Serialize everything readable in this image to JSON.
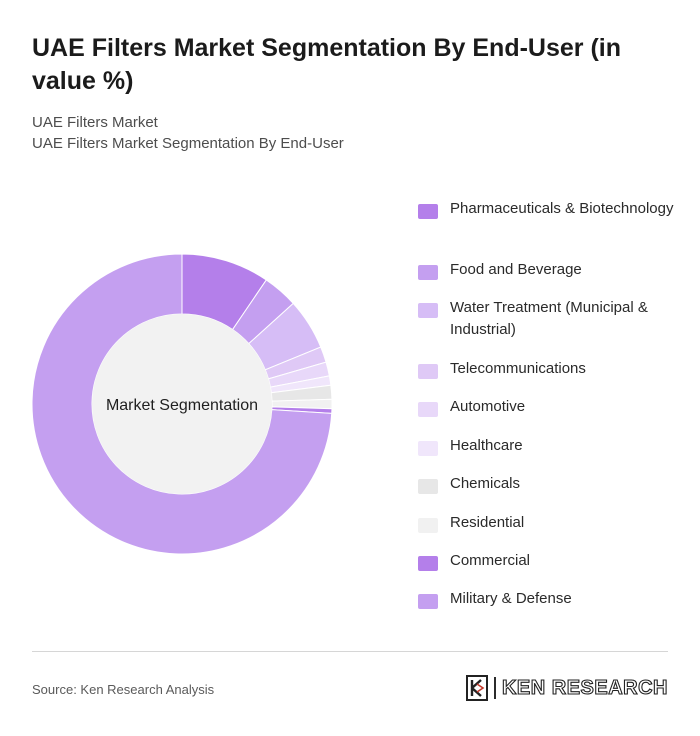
{
  "header": {
    "title": "UAE Filters Market Segmentation By End-User (in value %)",
    "subtitle_line1": "UAE Filters Market",
    "subtitle_line2": "UAE Filters Market Segmentation By End-User"
  },
  "chart_data": {
    "type": "pie",
    "donut": true,
    "center_label": "Market Segmentation",
    "legend_position": "right",
    "series": [
      {
        "name": "Pharmaceuticals & Biotechnology",
        "value": 9.5,
        "color": "#b47fea"
      },
      {
        "name": "Food and Beverage",
        "value": 3.8,
        "color": "#c49ff0"
      },
      {
        "name": "Water Treatment (Municipal & Industrial)",
        "value": 5.5,
        "color": "#d6bdf6"
      },
      {
        "name": "Telecommunications",
        "value": 1.7,
        "color": "#dfc9f6"
      },
      {
        "name": "Automotive",
        "value": 1.5,
        "color": "#e8d8f9"
      },
      {
        "name": "Healthcare",
        "value": 1.0,
        "color": "#f0e6fb"
      },
      {
        "name": "Chemicals",
        "value": 1.5,
        "color": "#e7e7e7"
      },
      {
        "name": "Residential",
        "value": 1.0,
        "color": "#f1f1f1"
      },
      {
        "name": "Commercial",
        "value": 0.5,
        "color": "#b47fea"
      },
      {
        "name": "Military & Defense",
        "value": 74.0,
        "color": "#c49ff0"
      }
    ]
  },
  "footer": {
    "source": "Source: Ken Research Analysis",
    "brand": "KEN RESEARCH"
  }
}
